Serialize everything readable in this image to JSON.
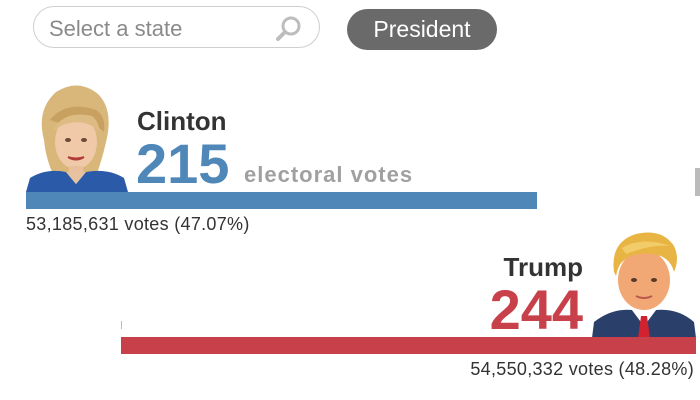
{
  "search": {
    "placeholder": "Select a state",
    "icon": "search-icon"
  },
  "race_toggle": {
    "label": "President",
    "color": "#6a6a6a"
  },
  "candidates": [
    {
      "name": "Clinton",
      "electoral_votes": "215",
      "electoral_label": "electoral votes",
      "popular_votes": "53,185,631 votes (47.07%)",
      "color": "#4f87b8"
    },
    {
      "name": "Trump",
      "electoral_votes": "244",
      "popular_votes": "54,550,332 votes (48.28%)",
      "color": "#c8404a"
    }
  ]
}
